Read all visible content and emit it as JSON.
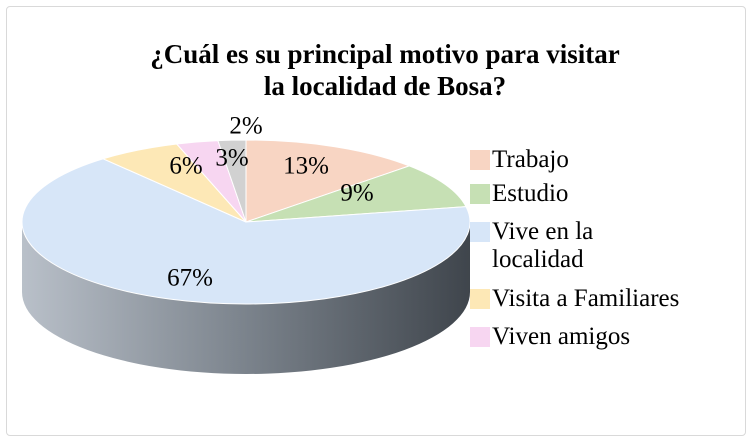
{
  "chart_data": {
    "type": "pie",
    "title": "¿Cuál es su principal motivo para visitar la localidad de Bosa?",
    "categories": [
      "Trabajo",
      "Estudio",
      "Vive en la localidad",
      "Visita a Familiares",
      "Viven amigos",
      null
    ],
    "values": [
      13,
      9,
      67,
      6,
      3,
      2
    ],
    "value_labels": [
      "13%",
      "9%",
      "67%",
      "6%",
      "3%",
      "2%"
    ],
    "colors": [
      "#f8d5c3",
      "#c6e0b4",
      "#d7e6f8",
      "#fde8b6",
      "#f7d6f1",
      "#d1d1d1"
    ],
    "legend": "right"
  }
}
